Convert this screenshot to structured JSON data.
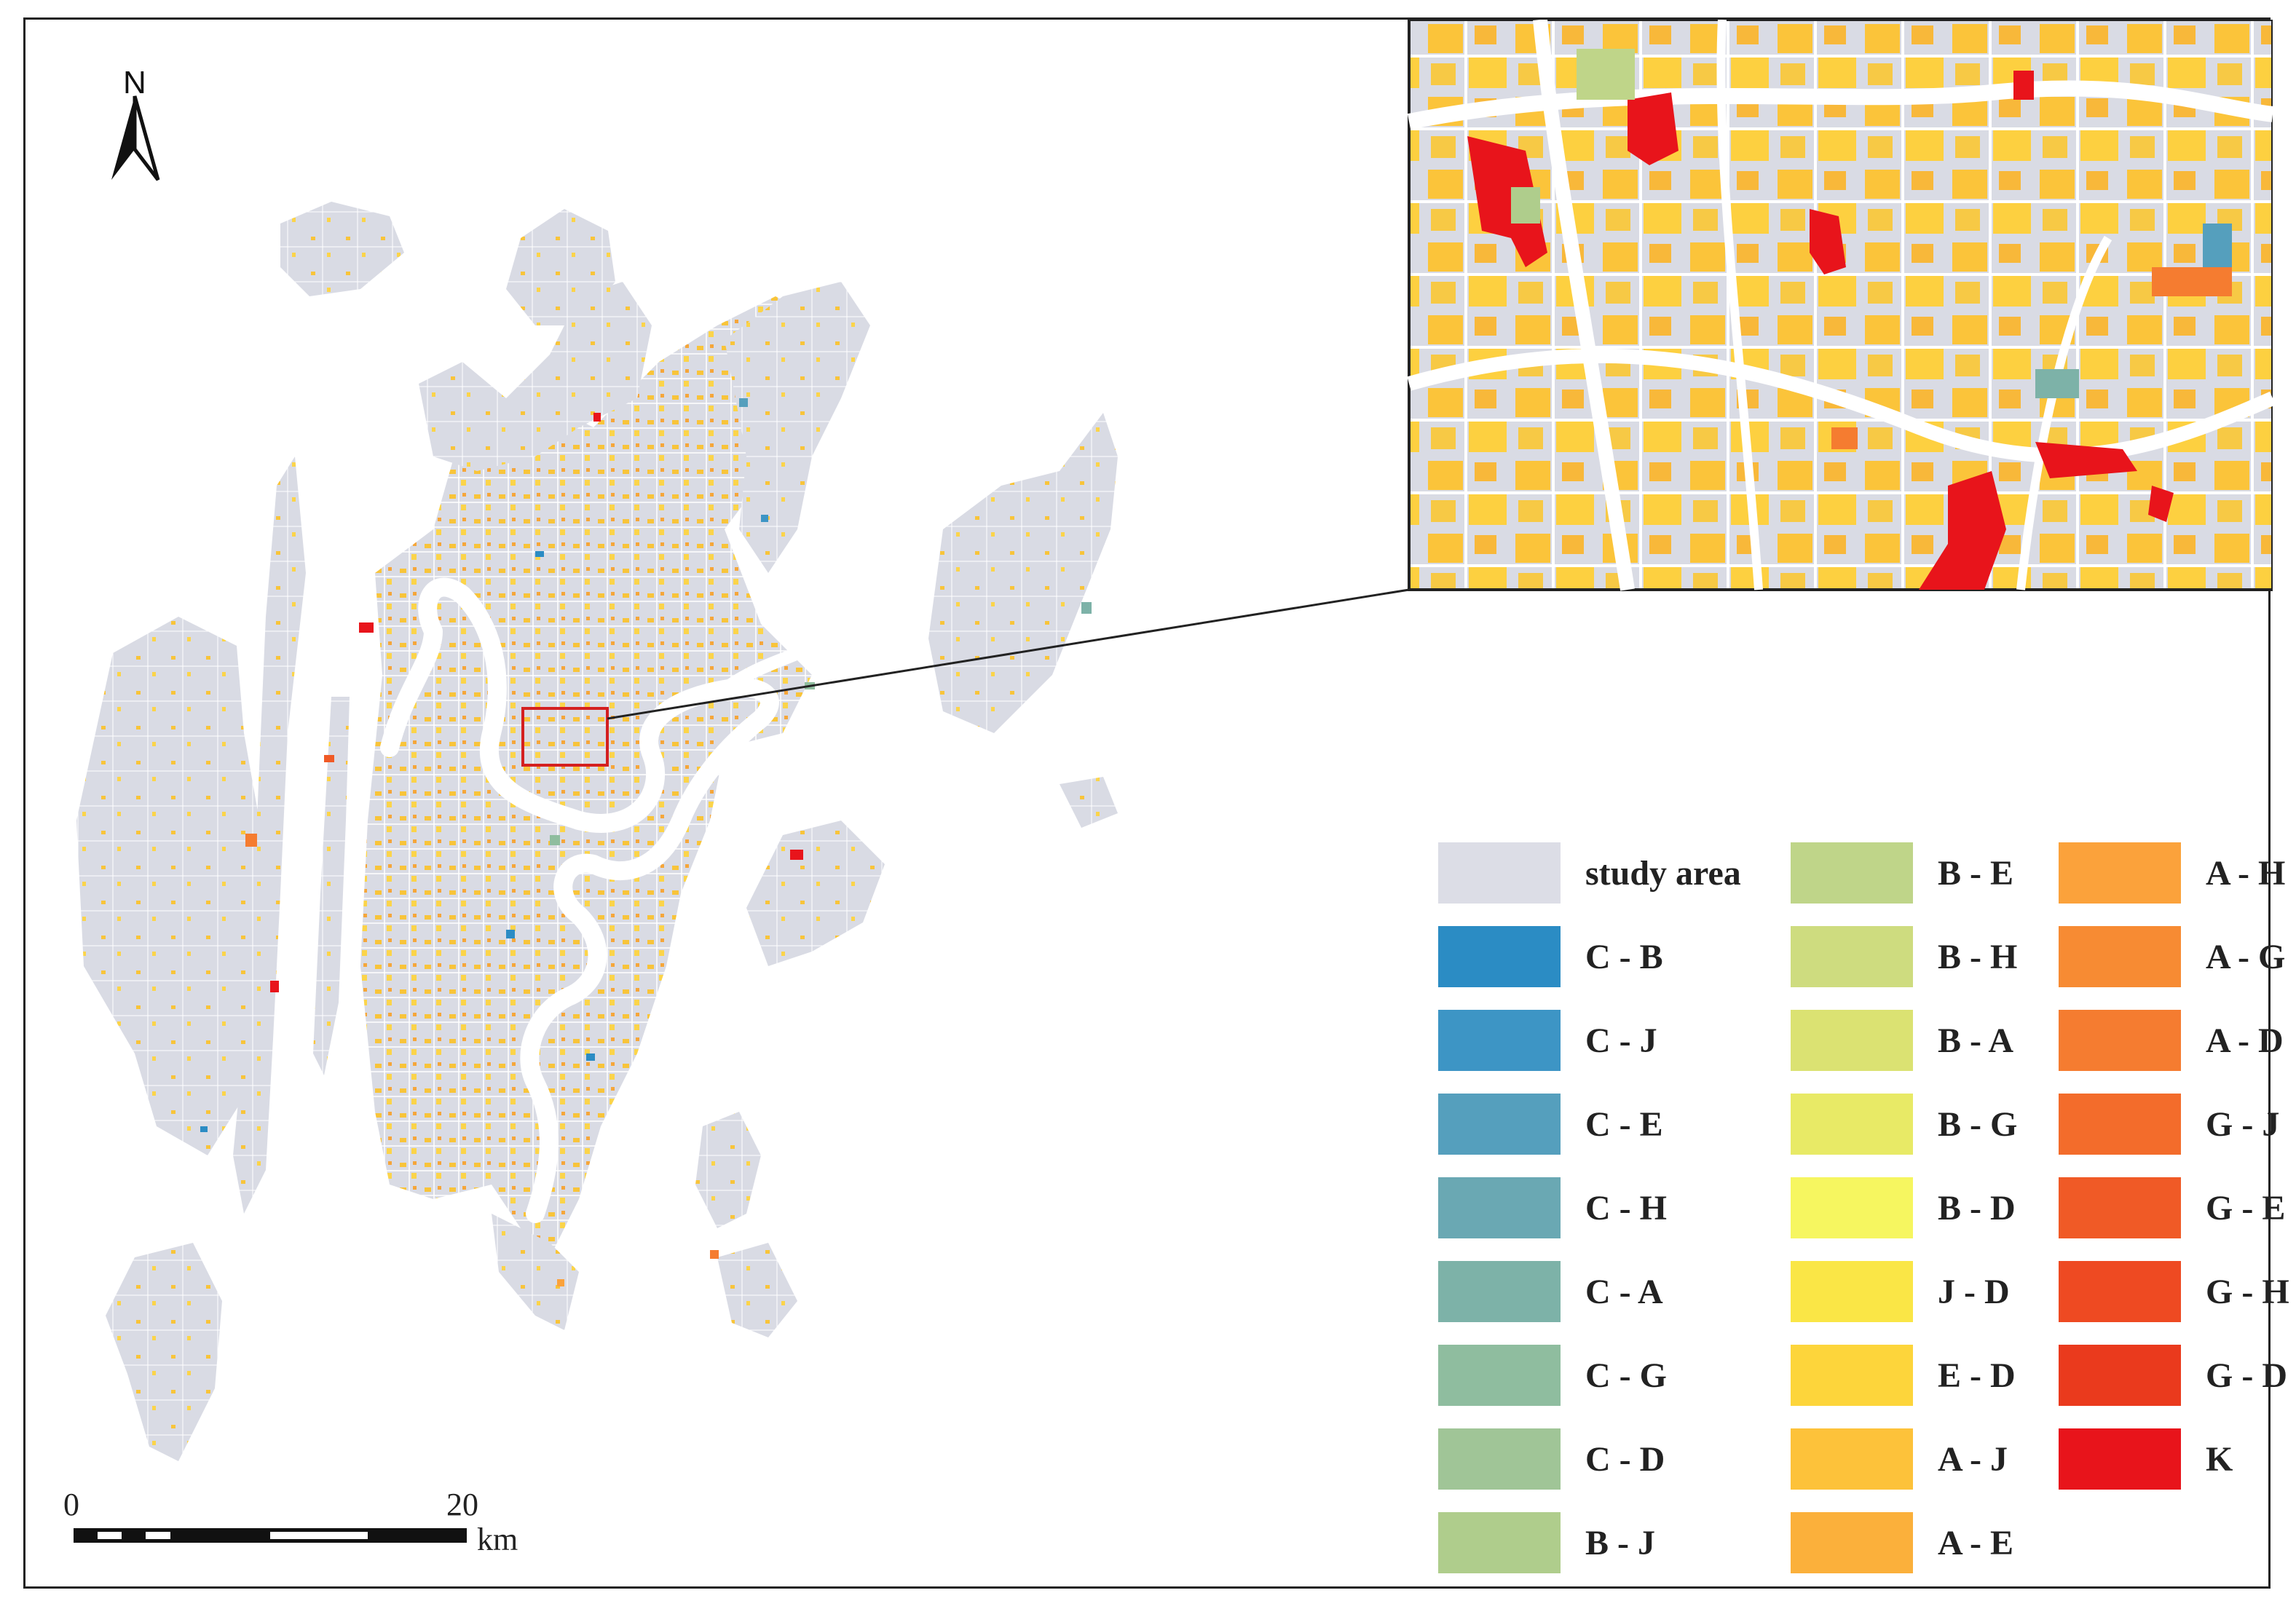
{
  "north_arrow": {
    "label": "N",
    "icon": "north-arrow-icon"
  },
  "scale_bar": {
    "start": "0",
    "end": "20",
    "unit": "km"
  },
  "colors": {
    "study_area": "#d9dbe4",
    "river": "#ffffff",
    "inset_box": "#d42020",
    "frame": "#222222"
  },
  "legend": [
    {
      "label": "study area",
      "color": "#dcdde6"
    },
    {
      "label": "C - B",
      "color": "#2b8cc4"
    },
    {
      "label": "C - J",
      "color": "#3d95c5"
    },
    {
      "label": "C - E",
      "color": "#559fbd"
    },
    {
      "label": "C - H",
      "color": "#6aa8b3"
    },
    {
      "label": "C - A",
      "color": "#7db2a8"
    },
    {
      "label": "C - G",
      "color": "#8fbd9f"
    },
    {
      "label": "C - D",
      "color": "#a0c597"
    },
    {
      "label": "B - J",
      "color": "#afcd8c"
    },
    {
      "label": "B - E",
      "color": "#bfd589"
    },
    {
      "label": "B - H",
      "color": "#cedc7f"
    },
    {
      "label": "B - A",
      "color": "#dbe272"
    },
    {
      "label": "B - G",
      "color": "#e8ea66"
    },
    {
      "label": "B - D",
      "color": "#f6f660"
    },
    {
      "label": "J - D",
      "color": "#fae646"
    },
    {
      "label": "E - D",
      "color": "#fdd53b"
    },
    {
      "label": "A - J",
      "color": "#fdc23a"
    },
    {
      "label": "A - E",
      "color": "#fbb03b"
    },
    {
      "label": "A - H",
      "color": "#fba23b"
    },
    {
      "label": "A - G",
      "color": "#f78b33"
    },
    {
      "label": "A - D",
      "color": "#f57c30"
    },
    {
      "label": "G - J",
      "color": "#f36c2b"
    },
    {
      "label": "G - E",
      "color": "#f05a26"
    },
    {
      "label": "G - H",
      "color": "#ee4a22"
    },
    {
      "label": "G - D",
      "color": "#ea3a1d"
    },
    {
      "label": "K",
      "color": "#e8141b"
    }
  ]
}
